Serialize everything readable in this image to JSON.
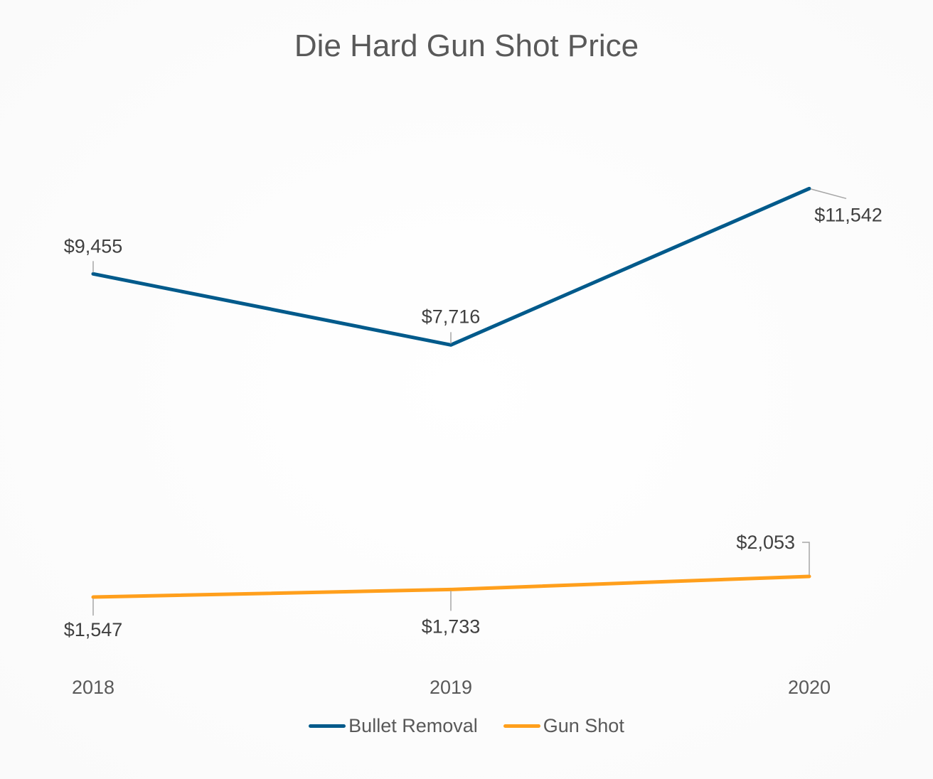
{
  "chart_data": {
    "type": "line",
    "title": "Die Hard Gun Shot Price",
    "categories": [
      "2018",
      "2019",
      "2020"
    ],
    "series": [
      {
        "name": "Bullet Removal",
        "values": [
          9455,
          7716,
          11542
        ],
        "labels": [
          "$9,455",
          "$7,716",
          "$11,542"
        ],
        "color": "#005a8b"
      },
      {
        "name": "Gun Shot",
        "values": [
          1547,
          1733,
          2053
        ],
        "labels": [
          "$1,547",
          "$1,733",
          "$2,053"
        ],
        "color": "#ff9f1c"
      }
    ],
    "ylim": [
      0,
      14000
    ],
    "grid": false,
    "legend": "bottom",
    "xlabel": "",
    "ylabel": ""
  }
}
